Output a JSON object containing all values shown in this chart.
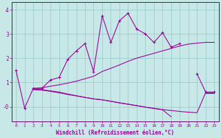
{
  "x": [
    0,
    1,
    2,
    3,
    4,
    5,
    6,
    7,
    8,
    9,
    10,
    11,
    12,
    13,
    14,
    15,
    16,
    17,
    18,
    19,
    20,
    21,
    22,
    23
  ],
  "line1_y": [
    1.5,
    -0.06,
    0.75,
    0.75,
    1.1,
    1.2,
    1.95,
    2.3,
    2.6,
    1.45,
    3.75,
    2.65,
    3.55,
    3.85,
    3.2,
    3.0,
    2.65,
    3.05,
    2.45,
    2.6,
    null,
    1.35,
    0.6,
    0.6
  ],
  "line2_y": [
    null,
    null,
    0.75,
    0.78,
    0.84,
    0.9,
    0.97,
    1.05,
    1.15,
    1.25,
    1.45,
    1.58,
    1.72,
    1.87,
    2.0,
    2.1,
    2.2,
    2.3,
    2.4,
    2.5,
    2.58,
    2.62,
    2.65,
    2.65
  ],
  "line3_y": [
    null,
    null,
    0.72,
    0.7,
    0.65,
    0.6,
    0.52,
    0.45,
    0.38,
    0.32,
    0.28,
    0.22,
    0.15,
    0.1,
    0.04,
    -0.02,
    -0.07,
    -0.12,
    -0.16,
    -0.2,
    -0.23,
    -0.25,
    0.58,
    0.58
  ],
  "line4_y": [
    null,
    null,
    0.7,
    0.68,
    0.63,
    0.57,
    0.5,
    0.44,
    0.38,
    0.32,
    0.28,
    0.22,
    0.16,
    0.1,
    0.04,
    -0.02,
    -0.08,
    -0.13,
    -0.42,
    null,
    null,
    null,
    0.56,
    0.56
  ],
  "bg_color": "#c8e8e8",
  "line_color": "#990099",
  "grid_color": "#99cccc",
  "xlabel": "Windchill (Refroidissement éolien,°C)",
  "xlim": [
    -0.5,
    23.5
  ],
  "ylim": [
    -0.6,
    4.3
  ],
  "yticks": [
    0,
    1,
    2,
    3,
    4
  ],
  "ytick_labels": [
    "-0",
    "1",
    "2",
    "3",
    "4"
  ],
  "xticks": [
    0,
    1,
    2,
    3,
    4,
    5,
    6,
    7,
    8,
    9,
    10,
    11,
    12,
    13,
    14,
    15,
    16,
    17,
    18,
    19,
    20,
    21,
    22,
    23
  ]
}
